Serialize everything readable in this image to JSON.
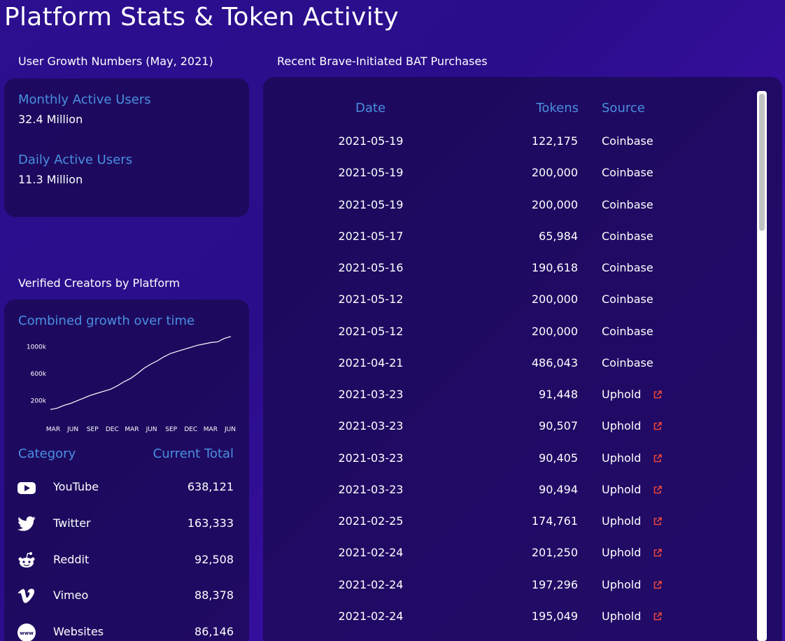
{
  "page_title": "Platform Stats & Token Activity",
  "user_growth": {
    "heading": "User Growth Numbers (May, 2021)",
    "monthly_label": "Monthly Active Users",
    "monthly_value": "32.4 Million",
    "daily_label": "Daily Active Users",
    "daily_value": "11.3 Million"
  },
  "creators": {
    "heading": "Verified Creators by Platform",
    "chart_title": "Combined growth over time",
    "category_header": "Category",
    "total_header": "Current Total",
    "items": [
      {
        "name": "YouTube",
        "total": "638,121",
        "icon": "youtube-icon"
      },
      {
        "name": "Twitter",
        "total": "163,333",
        "icon": "twitter-icon"
      },
      {
        "name": "Reddit",
        "total": "92,508",
        "icon": "reddit-icon"
      },
      {
        "name": "Vimeo",
        "total": "88,378",
        "icon": "vimeo-icon"
      },
      {
        "name": "Websites",
        "total": "86,146",
        "icon": "websites-icon"
      }
    ]
  },
  "chart_data": {
    "type": "line",
    "title": "Combined growth over time",
    "x_ticks": [
      "MAR",
      "JUN",
      "SEP",
      "DEC",
      "MAR",
      "JUN",
      "SEP",
      "DEC",
      "MAR",
      "JUN"
    ],
    "y_ticks": [
      "200k",
      "600k",
      "1000k"
    ],
    "ylim": [
      0,
      1200000
    ],
    "x": [
      0,
      1,
      2,
      3,
      4,
      5,
      6,
      7,
      8,
      9,
      10,
      11,
      12,
      13,
      14,
      15,
      16,
      17,
      18,
      19,
      20,
      21,
      22,
      23,
      24,
      25,
      26,
      27
    ],
    "values": [
      70000,
      90000,
      130000,
      160000,
      200000,
      240000,
      280000,
      310000,
      340000,
      370000,
      420000,
      480000,
      530000,
      600000,
      680000,
      740000,
      790000,
      850000,
      900000,
      930000,
      960000,
      990000,
      1020000,
      1040000,
      1060000,
      1070000,
      1120000,
      1150000
    ],
    "grid": false,
    "legend": "none"
  },
  "purchases": {
    "heading": "Recent Brave-Initiated BAT Purchases",
    "columns": {
      "date": "Date",
      "tokens": "Tokens",
      "source": "Source"
    },
    "rows": [
      {
        "date": "2021-05-19",
        "tokens": "122,175",
        "source": "Coinbase",
        "link": false
      },
      {
        "date": "2021-05-19",
        "tokens": "200,000",
        "source": "Coinbase",
        "link": false
      },
      {
        "date": "2021-05-19",
        "tokens": "200,000",
        "source": "Coinbase",
        "link": false
      },
      {
        "date": "2021-05-17",
        "tokens": "65,984",
        "source": "Coinbase",
        "link": false
      },
      {
        "date": "2021-05-16",
        "tokens": "190,618",
        "source": "Coinbase",
        "link": false
      },
      {
        "date": "2021-05-12",
        "tokens": "200,000",
        "source": "Coinbase",
        "link": false
      },
      {
        "date": "2021-05-12",
        "tokens": "200,000",
        "source": "Coinbase",
        "link": false
      },
      {
        "date": "2021-04-21",
        "tokens": "486,043",
        "source": "Coinbase",
        "link": false
      },
      {
        "date": "2021-03-23",
        "tokens": "91,448",
        "source": "Uphold",
        "link": true
      },
      {
        "date": "2021-03-23",
        "tokens": "90,507",
        "source": "Uphold",
        "link": true
      },
      {
        "date": "2021-03-23",
        "tokens": "90,405",
        "source": "Uphold",
        "link": true
      },
      {
        "date": "2021-03-23",
        "tokens": "90,494",
        "source": "Uphold",
        "link": true
      },
      {
        "date": "2021-02-25",
        "tokens": "174,761",
        "source": "Uphold",
        "link": true
      },
      {
        "date": "2021-02-24",
        "tokens": "201,250",
        "source": "Uphold",
        "link": true
      },
      {
        "date": "2021-02-24",
        "tokens": "197,296",
        "source": "Uphold",
        "link": true
      },
      {
        "date": "2021-02-24",
        "tokens": "195,049",
        "source": "Uphold",
        "link": true
      }
    ]
  },
  "colors": {
    "accent": "#4a8fe0",
    "link_icon": "#e8453c",
    "background": "#2b0f8f",
    "panel": "#1e0c5c"
  }
}
